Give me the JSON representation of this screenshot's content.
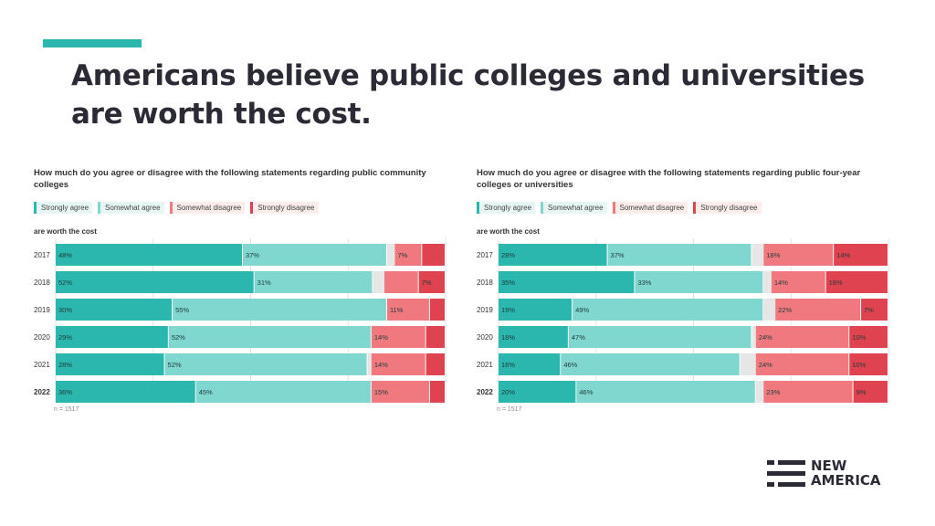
{
  "slide": {
    "title": "Americans believe public colleges and universities are worth the cost.",
    "accent_color": "#2bb6ae"
  },
  "colors": {
    "strongly_agree": "#2bb6ae",
    "somewhat_agree": "#7fd7cf",
    "gap": "#e6e6e6",
    "somewhat_disagree": "#f0797f",
    "strongly_disagree": "#e04350"
  },
  "logo": {
    "line1": "NEW",
    "line2": "AMERICA",
    "icon": "new-america-logo-icon"
  },
  "chart_data": [
    {
      "type": "bar",
      "orientation": "horizontal-stacked",
      "title": "How much do you agree or disagree with the following statements regarding public community colleges",
      "subtitle": "are worth the cost",
      "legend": [
        "Strongly agree",
        "Somewhat agree",
        "Somewhat disagree",
        "Strongly disagree"
      ],
      "categories": [
        "2017",
        "2018",
        "2019",
        "2020",
        "2021",
        "2022"
      ],
      "series": [
        {
          "name": "Strongly agree",
          "values": [
            48,
            52,
            30,
            29,
            28,
            36
          ],
          "labels": [
            "48%",
            "52%",
            "30%",
            "29%",
            "28%",
            "36%"
          ]
        },
        {
          "name": "Somewhat agree",
          "values": [
            37,
            31,
            55,
            52,
            52,
            45
          ],
          "labels": [
            "37%",
            "31%",
            "55%",
            "52%",
            "52%",
            "45%"
          ]
        },
        {
          "name": "Somewhat disagree",
          "values": [
            7,
            9,
            11,
            14,
            14,
            15
          ],
          "labels": [
            "7%",
            "",
            "11%",
            "14%",
            "14%",
            "15%"
          ]
        },
        {
          "name": "Strongly disagree",
          "values": [
            6,
            7,
            4,
            5,
            5,
            4
          ],
          "labels": [
            "",
            "7%",
            "",
            "",
            "",
            ""
          ]
        }
      ],
      "gaps": [
        2,
        3,
        0,
        0,
        1,
        0
      ],
      "note": "n = 1517"
    },
    {
      "type": "bar",
      "orientation": "horizontal-stacked",
      "title": "How much do you agree or disagree with the following statements regarding public four-year colleges or universities",
      "subtitle": "are worth the cost",
      "legend": [
        "Strongly agree",
        "Somewhat agree",
        "Somewhat disagree",
        "Strongly disagree"
      ],
      "categories": [
        "2017",
        "2018",
        "2019",
        "2020",
        "2021",
        "2022"
      ],
      "series": [
        {
          "name": "Strongly agree",
          "values": [
            28,
            35,
            19,
            18,
            16,
            20
          ],
          "labels": [
            "28%",
            "35%",
            "19%",
            "18%",
            "16%",
            "20%"
          ]
        },
        {
          "name": "Somewhat agree",
          "values": [
            37,
            33,
            49,
            47,
            46,
            46
          ],
          "labels": [
            "37%",
            "33%",
            "49%",
            "47%",
            "46%",
            "46%"
          ]
        },
        {
          "name": "Somewhat disagree",
          "values": [
            18,
            14,
            22,
            24,
            24,
            23
          ],
          "labels": [
            "18%",
            "14%",
            "22%",
            "24%",
            "24%",
            "23%"
          ]
        },
        {
          "name": "Strongly disagree",
          "values": [
            14,
            16,
            7,
            10,
            10,
            9
          ],
          "labels": [
            "14%",
            "16%",
            "7%",
            "10%",
            "10%",
            "9%"
          ]
        }
      ],
      "gaps": [
        3,
        2,
        3,
        1,
        4,
        2
      ],
      "note": "n = 1517"
    }
  ]
}
